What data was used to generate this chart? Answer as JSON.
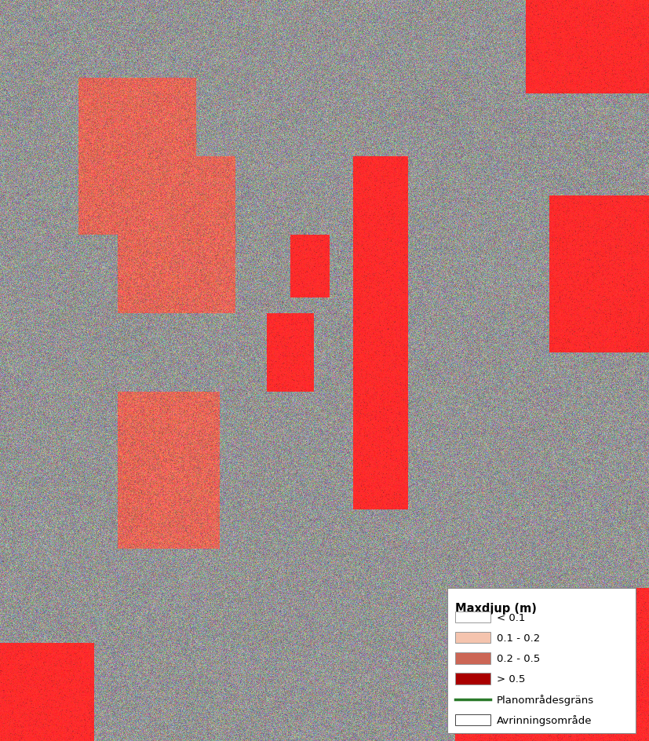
{
  "legend_title": "Maxdjup (m)",
  "legend_items": [
    {
      "label": "< 0.1",
      "color": "#FFFFFF",
      "edge_color": "#999999",
      "type": "patch"
    },
    {
      "label": "0.1 - 0.2",
      "color": "#F5C4AE",
      "edge_color": "#999999",
      "type": "patch"
    },
    {
      "label": "0.2 - 0.5",
      "color": "#CC6655",
      "edge_color": "#999999",
      "type": "patch"
    },
    {
      "label": "> 0.5",
      "color": "#AA0000",
      "edge_color": "#999999",
      "type": "patch"
    },
    {
      "label": "Planområdesgräns",
      "color": "#2A7A2A",
      "type": "line"
    },
    {
      "label": "Avrinningsområde",
      "color": "#FFFFFF",
      "edge_color": "#444444",
      "type": "patch_border"
    }
  ],
  "legend_title_fontsize": 10.5,
  "legend_label_fontsize": 9.5,
  "fig_width": 8.27,
  "fig_height": 9.45,
  "dpi": 100
}
